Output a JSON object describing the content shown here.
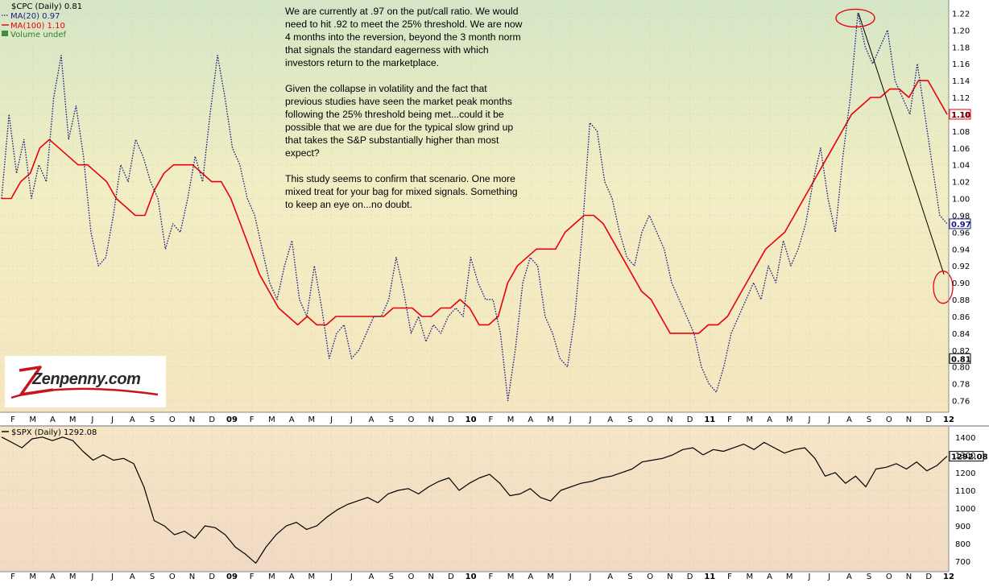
{
  "chart_data": [
    {
      "type": "line",
      "title": "$CPC (Daily) 0.81",
      "ylim": [
        0.75,
        1.23
      ],
      "yticks": [
        0.76,
        0.78,
        0.8,
        0.82,
        0.84,
        0.86,
        0.88,
        0.9,
        0.92,
        0.94,
        0.96,
        0.98,
        1.0,
        1.02,
        1.04,
        1.06,
        1.08,
        1.1,
        1.12,
        1.14,
        1.16,
        1.18,
        1.2,
        1.22
      ],
      "xticks": [
        "F",
        "M",
        "A",
        "M",
        "J",
        "J",
        "A",
        "S",
        "O",
        "N",
        "D",
        "09",
        "F",
        "M",
        "A",
        "M",
        "J",
        "J",
        "A",
        "S",
        "O",
        "N",
        "D",
        "10",
        "F",
        "M",
        "A",
        "M",
        "J",
        "J",
        "A",
        "S",
        "O",
        "N",
        "D",
        "11",
        "F",
        "M",
        "A",
        "M",
        "J",
        "J",
        "A",
        "S",
        "O",
        "N",
        "D",
        "12"
      ],
      "legend": [
        "MA(20) 0.97",
        "MA(100) 1.10",
        "Volume undef"
      ],
      "last_values": {
        "price": "0.81",
        "ma20": "0.97",
        "ma100": "1.10"
      },
      "series": [
        {
          "name": "MA(20)",
          "color": "#1a1a80",
          "style": "dotted",
          "values": [
            1.0,
            1.1,
            1.03,
            1.07,
            1.0,
            1.04,
            1.02,
            1.12,
            1.17,
            1.07,
            1.11,
            1.05,
            0.96,
            0.92,
            0.93,
            0.98,
            1.04,
            1.02,
            1.07,
            1.05,
            1.02,
            1.0,
            0.94,
            0.97,
            0.96,
            1.0,
            1.05,
            1.02,
            1.1,
            1.17,
            1.12,
            1.06,
            1.04,
            1.0,
            0.98,
            0.94,
            0.9,
            0.88,
            0.92,
            0.95,
            0.88,
            0.86,
            0.92,
            0.87,
            0.81,
            0.84,
            0.85,
            0.81,
            0.82,
            0.84,
            0.86,
            0.86,
            0.88,
            0.93,
            0.89,
            0.84,
            0.86,
            0.83,
            0.85,
            0.84,
            0.86,
            0.87,
            0.86,
            0.93,
            0.9,
            0.88,
            0.88,
            0.84,
            0.76,
            0.82,
            0.9,
            0.93,
            0.92,
            0.86,
            0.84,
            0.81,
            0.8,
            0.86,
            0.96,
            1.09,
            1.08,
            1.02,
            1.0,
            0.96,
            0.93,
            0.92,
            0.96,
            0.98,
            0.96,
            0.94,
            0.9,
            0.88,
            0.86,
            0.84,
            0.8,
            0.78,
            0.77,
            0.8,
            0.84,
            0.86,
            0.88,
            0.9,
            0.88,
            0.92,
            0.9,
            0.95,
            0.92,
            0.94,
            0.97,
            1.02,
            1.06,
            1.0,
            0.96,
            1.05,
            1.12,
            1.22,
            1.18,
            1.16,
            1.18,
            1.2,
            1.14,
            1.12,
            1.1,
            1.16,
            1.1,
            1.04,
            0.98,
            0.97
          ]
        },
        {
          "name": "MA(100)",
          "color": "#e8000b",
          "style": "solid",
          "values": [
            1.0,
            1.0,
            1.02,
            1.03,
            1.06,
            1.07,
            1.06,
            1.05,
            1.04,
            1.04,
            1.03,
            1.02,
            1.0,
            0.99,
            0.98,
            0.98,
            1.01,
            1.03,
            1.04,
            1.04,
            1.04,
            1.03,
            1.02,
            1.02,
            1.0,
            0.97,
            0.94,
            0.91,
            0.89,
            0.87,
            0.86,
            0.85,
            0.86,
            0.85,
            0.85,
            0.86,
            0.86,
            0.86,
            0.86,
            0.86,
            0.86,
            0.87,
            0.87,
            0.87,
            0.86,
            0.86,
            0.87,
            0.87,
            0.88,
            0.87,
            0.85,
            0.85,
            0.86,
            0.9,
            0.92,
            0.93,
            0.94,
            0.94,
            0.94,
            0.96,
            0.97,
            0.98,
            0.98,
            0.97,
            0.95,
            0.93,
            0.91,
            0.89,
            0.88,
            0.86,
            0.84,
            0.84,
            0.84,
            0.84,
            0.85,
            0.85,
            0.86,
            0.88,
            0.9,
            0.92,
            0.94,
            0.95,
            0.96,
            0.98,
            1.0,
            1.02,
            1.04,
            1.06,
            1.08,
            1.1,
            1.11,
            1.12,
            1.12,
            1.13,
            1.13,
            1.12,
            1.14,
            1.14,
            1.12,
            1.1
          ]
        }
      ],
      "annotations": {
        "trendline": {
          "from": [
            1.22
          ],
          "to": [
            0.91
          ]
        },
        "circles": [
          "peak near 1.22",
          "target near 0.91"
        ]
      }
    },
    {
      "type": "line",
      "title": "$SPX (Daily) 1292.08",
      "ylim": [
        660,
        1440
      ],
      "yticks": [
        700,
        800,
        900,
        1000,
        1100,
        1200,
        1300,
        1400
      ],
      "xticks": [
        "F",
        "M",
        "A",
        "M",
        "J",
        "J",
        "A",
        "S",
        "O",
        "N",
        "D",
        "09",
        "F",
        "M",
        "A",
        "M",
        "J",
        "J",
        "A",
        "S",
        "O",
        "N",
        "D",
        "10",
        "F",
        "M",
        "A",
        "M",
        "J",
        "J",
        "A",
        "S",
        "O",
        "N",
        "D",
        "11",
        "F",
        "M",
        "A",
        "M",
        "J",
        "J",
        "A",
        "S",
        "O",
        "N",
        "D",
        "12"
      ],
      "last_value": "1292.08",
      "series": [
        {
          "name": "$SPX",
          "color": "#000000",
          "values": [
            1400,
            1370,
            1340,
            1390,
            1400,
            1380,
            1400,
            1380,
            1320,
            1270,
            1300,
            1270,
            1280,
            1250,
            1120,
            930,
            900,
            850,
            870,
            830,
            900,
            890,
            850,
            780,
            740,
            690,
            780,
            850,
            900,
            920,
            880,
            900,
            950,
            990,
            1020,
            1040,
            1060,
            1030,
            1080,
            1100,
            1110,
            1080,
            1120,
            1150,
            1170,
            1100,
            1140,
            1170,
            1190,
            1140,
            1070,
            1080,
            1110,
            1060,
            1040,
            1100,
            1120,
            1140,
            1150,
            1170,
            1180,
            1200,
            1220,
            1260,
            1270,
            1280,
            1300,
            1330,
            1340,
            1300,
            1330,
            1320,
            1340,
            1360,
            1330,
            1370,
            1340,
            1310,
            1330,
            1340,
            1280,
            1180,
            1200,
            1140,
            1180,
            1120,
            1220,
            1230,
            1250,
            1220,
            1260,
            1210,
            1240,
            1292
          ]
        }
      ]
    }
  ],
  "annotation": {
    "p1": "We are currently at .97 on the put/call ratio. We would need to hit .92 to meet the 25% threshold. We are now 4 months into the reversion, beyond the 3 month norm that signals the standard eagerness with which investors return to the marketplace.",
    "p2": "Given the collapse in volatility and the fact that previous studies have seen the market peak months following the 25% threshold being met...could it be possible that we are due for the typical slow grind up that takes the S&P substantially higher than most expect?",
    "p3": "This study seems to confirm that scenario. One more mixed treat for your bag for mixed signals. Something to keep an eye on...no doubt."
  },
  "logo": {
    "text": "Zenpenny.com"
  }
}
